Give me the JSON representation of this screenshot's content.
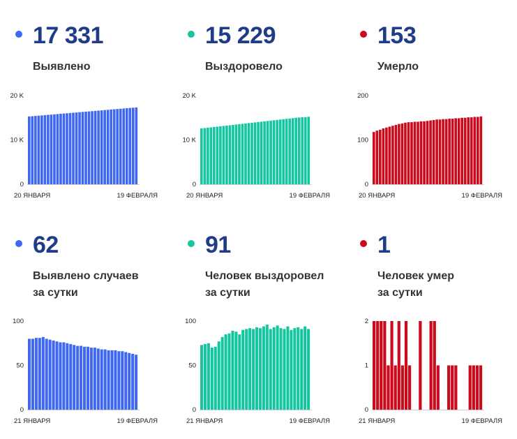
{
  "panels": [
    {
      "value": "17 331",
      "label_lines": [
        "Выявлено"
      ],
      "color": "#3f67f2",
      "chart_data": {
        "type": "bar",
        "ylim": [
          0,
          20000
        ],
        "yticks": [
          {
            "v": 0,
            "t": "0"
          },
          {
            "v": 10000,
            "t": "10 K"
          },
          {
            "v": 20000,
            "t": "20 K"
          }
        ],
        "xtick_labels": [
          "20 ЯНВАРЯ",
          "19 ФЕВРАЛЯ"
        ],
        "values": [
          15298,
          15358,
          15418,
          15478,
          15538,
          15598,
          15658,
          15718,
          15778,
          15838,
          15898,
          15958,
          16018,
          16078,
          16138,
          16198,
          16258,
          16318,
          16378,
          16438,
          16498,
          16558,
          16618,
          16678,
          16738,
          16798,
          16858,
          16918,
          16978,
          17038,
          17098,
          17158,
          17218,
          17269,
          17331
        ]
      }
    },
    {
      "value": "15 229",
      "label_lines": [
        "Выздоровело"
      ],
      "color": "#14c6a0",
      "chart_data": {
        "type": "bar",
        "ylim": [
          0,
          20000
        ],
        "yticks": [
          {
            "v": 0,
            "t": "0"
          },
          {
            "v": 10000,
            "t": "10 K"
          },
          {
            "v": 20000,
            "t": "20 K"
          }
        ],
        "xtick_labels": [
          "20 ЯНВАРЯ",
          "19 ФЕВРАЛЯ"
        ],
        "values": [
          12600,
          12680,
          12760,
          12840,
          12920,
          13000,
          13080,
          13160,
          13240,
          13320,
          13400,
          13480,
          13560,
          13640,
          13720,
          13800,
          13880,
          13960,
          14040,
          14120,
          14200,
          14280,
          14360,
          14440,
          14520,
          14600,
          14680,
          14760,
          14840,
          14920,
          15000,
          15060,
          15120,
          15138,
          15229
        ]
      }
    },
    {
      "value": "153",
      "label_lines": [
        "Умерло"
      ],
      "color": "#cc0a1c",
      "chart_data": {
        "type": "bar",
        "ylim": [
          0,
          200
        ],
        "yticks": [
          {
            "v": 0,
            "t": "0"
          },
          {
            "v": 100,
            "t": "100"
          },
          {
            "v": 200,
            "t": "200"
          }
        ],
        "xtick_labels": [
          "20 ЯНВАРЯ",
          "19 ФЕВРАЛЯ"
        ],
        "values": [
          118,
          121,
          123,
          126,
          128,
          130,
          132,
          134,
          136,
          137,
          139,
          140,
          140,
          141,
          141,
          142,
          142,
          143,
          144,
          145,
          146,
          146,
          147,
          147,
          148,
          148,
          149,
          149,
          150,
          150,
          151,
          151,
          152,
          152,
          153
        ]
      }
    },
    {
      "value": "62",
      "label_lines": [
        "Выявлено случаев",
        "за сутки"
      ],
      "color": "#3f67f2",
      "chart_data": {
        "type": "bar",
        "ylim": [
          0,
          100
        ],
        "yticks": [
          {
            "v": 0,
            "t": "0"
          },
          {
            "v": 50,
            "t": "50"
          },
          {
            "v": 100,
            "t": "100"
          }
        ],
        "xtick_labels": [
          "21 ЯНВАРЯ",
          "19 ФЕВРАЛЯ"
        ],
        "values": [
          80,
          80,
          81,
          81,
          82,
          80,
          79,
          78,
          77,
          76,
          76,
          75,
          74,
          73,
          72,
          72,
          71,
          71,
          70,
          70,
          69,
          68,
          68,
          67,
          67,
          67,
          66,
          66,
          65,
          64,
          63,
          62
        ]
      }
    },
    {
      "value": "91",
      "label_lines": [
        "Человек выздоровел",
        "за сутки"
      ],
      "color": "#14c6a0",
      "chart_data": {
        "type": "bar",
        "ylim": [
          0,
          100
        ],
        "yticks": [
          {
            "v": 0,
            "t": "0"
          },
          {
            "v": 50,
            "t": "50"
          },
          {
            "v": 100,
            "t": "100"
          }
        ],
        "xtick_labels": [
          "21 ЯНВАРЯ",
          "19 ФЕВРАЛЯ"
        ],
        "values": [
          73,
          74,
          75,
          70,
          71,
          77,
          82,
          85,
          86,
          89,
          88,
          85,
          90,
          91,
          92,
          91,
          93,
          92,
          94,
          96,
          91,
          93,
          95,
          92,
          91,
          94,
          90,
          92,
          93,
          91,
          94,
          91
        ]
      }
    },
    {
      "value": "1",
      "label_lines": [
        "Человек умер",
        "за сутки"
      ],
      "color": "#cc0a1c",
      "chart_data": {
        "type": "bar",
        "ylim": [
          0,
          2
        ],
        "yticks": [
          {
            "v": 0,
            "t": "0"
          },
          {
            "v": 1,
            "t": "1"
          },
          {
            "v": 2,
            "t": "2"
          }
        ],
        "xtick_labels": [
          "21 ЯНВАРЯ",
          "19 ФЕВРАЛЯ"
        ],
        "values": [
          2,
          2,
          2,
          2,
          1,
          2,
          1,
          2,
          1,
          2,
          1,
          0,
          0,
          2,
          0,
          0,
          2,
          2,
          1,
          0,
          0,
          1,
          1,
          1,
          0,
          0,
          0,
          1,
          1,
          1,
          1
        ]
      }
    }
  ]
}
